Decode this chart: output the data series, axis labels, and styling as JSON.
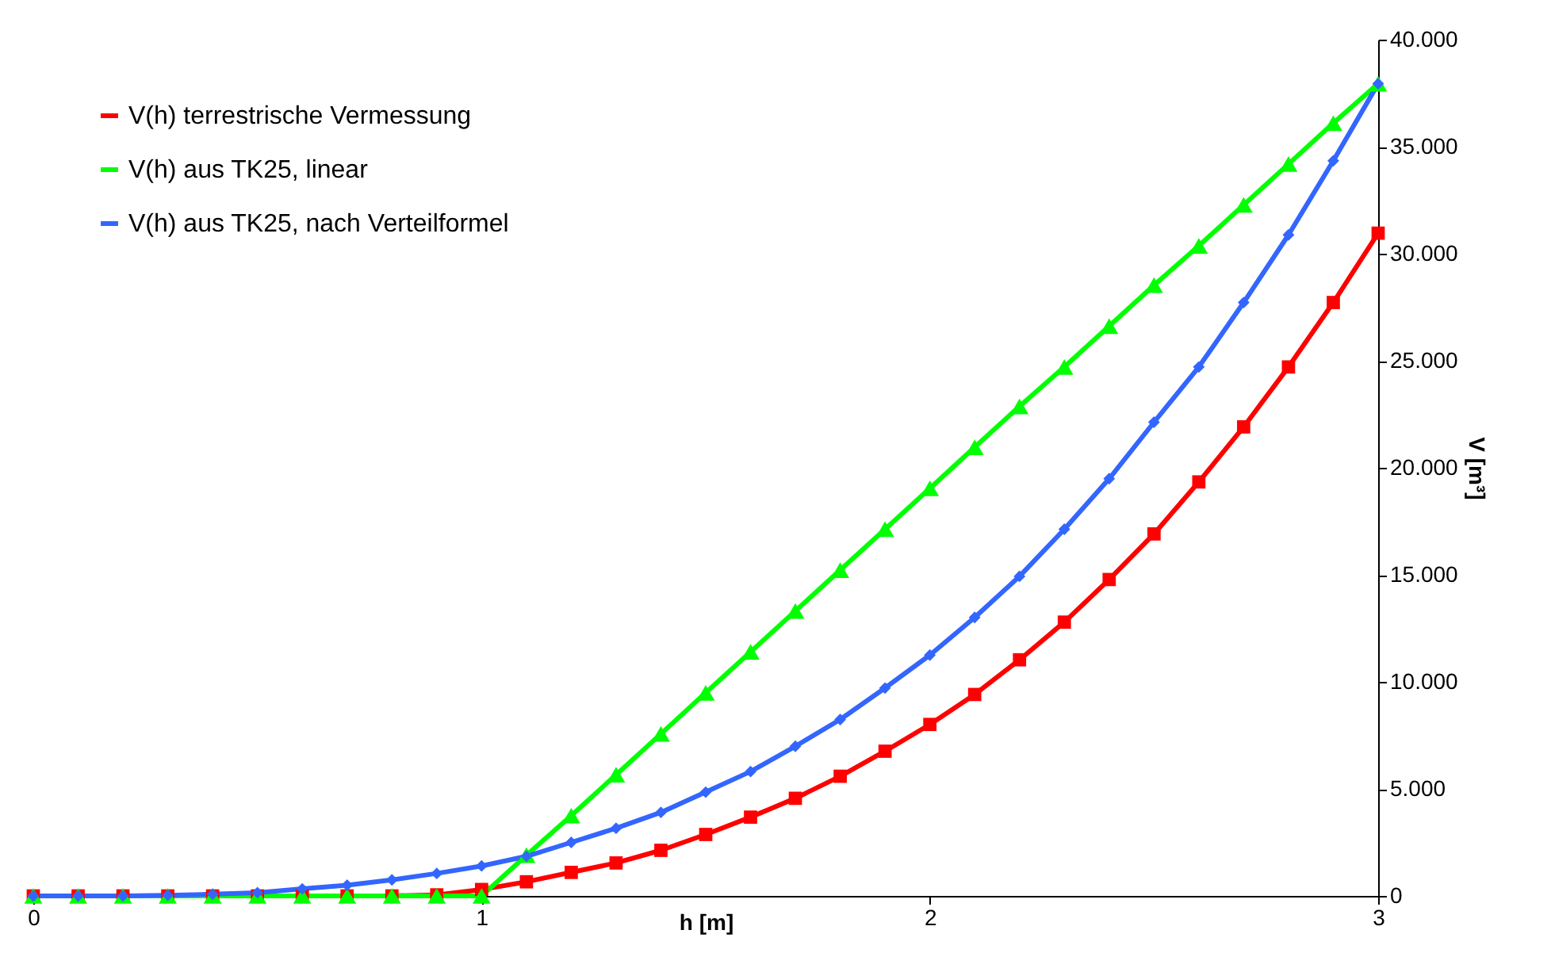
{
  "chart_data": {
    "type": "line",
    "xlabel": "h [m]",
    "ylabel": "V [m³]",
    "x": [
      0,
      0.1,
      0.2,
      0.3,
      0.4,
      0.5,
      0.6,
      0.7,
      0.8,
      0.9,
      1.0,
      1.1,
      1.2,
      1.3,
      1.4,
      1.5,
      1.6,
      1.7,
      1.8,
      1.9,
      2.0,
      2.1,
      2.2,
      2.3,
      2.4,
      2.5,
      2.6,
      2.7,
      2.8,
      2.9,
      3.0
    ],
    "series": [
      {
        "name": "V(h) terrestrische Vermessung",
        "color": "#ff0000",
        "marker": "square",
        "values": [
          0,
          0,
          0,
          0,
          0,
          0,
          0,
          0,
          0,
          50,
          300,
          660,
          1100,
          1540,
          2130,
          2870,
          3680,
          4560,
          5590,
          6760,
          8010,
          9410,
          11030,
          12790,
          14780,
          16910,
          19340,
          21910,
          24710,
          27720,
          30960
        ]
      },
      {
        "name": "V(h) aus TK25, linear",
        "color": "#00ff00",
        "marker": "triangle",
        "values": [
          0,
          0,
          0,
          0,
          0,
          0,
          0,
          0,
          0,
          0,
          0,
          1900,
          3750,
          5660,
          7570,
          9490,
          11400,
          13310,
          15220,
          17130,
          19040,
          20960,
          22870,
          24710,
          26620,
          28530,
          30370,
          32280,
          34190,
          36100,
          37940
        ]
      },
      {
        "name": "V(h) aus TK25, nach Verteilformel",
        "color": "#3366ff",
        "marker": "diamond",
        "values": [
          0,
          0,
          0,
          30,
          80,
          150,
          330,
          500,
          750,
          1050,
          1400,
          1850,
          2500,
          3160,
          3900,
          4850,
          5810,
          6990,
          8240,
          9710,
          11250,
          13010,
          14930,
          17130,
          19490,
          22130,
          24710,
          27720,
          30880,
          34340,
          37940
        ]
      }
    ],
    "xlim": [
      0,
      3
    ],
    "xticks": [
      0,
      1,
      2,
      3
    ],
    "ylim": [
      0,
      40000
    ],
    "yticks": [
      0,
      {
        "value": 5000,
        "label": "5.000"
      },
      {
        "value": 10000,
        "label": "10.000"
      },
      {
        "value": 15000,
        "label": "15.000"
      },
      {
        "value": 20000,
        "label": "20.000"
      },
      {
        "value": 25000,
        "label": "25.000"
      },
      {
        "value": 30000,
        "label": "30.000"
      },
      {
        "value": 35000,
        "label": "35.000"
      },
      {
        "value": 40000,
        "label": "40.000"
      }
    ],
    "grid": false,
    "legend": "top left",
    "line_style": "solid"
  }
}
